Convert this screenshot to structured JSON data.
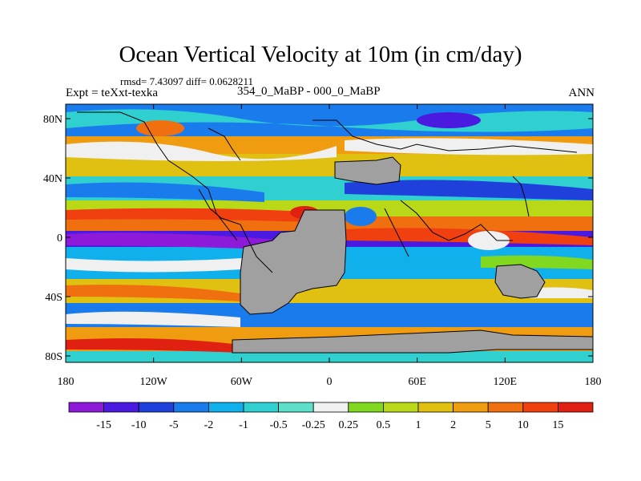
{
  "title": "Ocean Vertical Velocity at 10m (in cm/day)",
  "stats": "rmsd= 7.43097 diff= 0.0628211",
  "experiment": "Expt = teXxt-texka",
  "subtitle": "354_0_MaBP - 000_0_MaBP",
  "season": "ANN",
  "y_ticks": [
    "80N",
    "40N",
    "0",
    "40S",
    "80S"
  ],
  "x_ticks": [
    "180",
    "120W",
    "60W",
    "0",
    "60E",
    "120E",
    "180"
  ],
  "colorbar": {
    "labels": [
      "-15",
      "-10",
      "-5",
      "-2",
      "-1",
      "-0.5",
      "-0.25",
      "0.25",
      "0.5",
      "1",
      "2",
      "5",
      "10",
      "15"
    ],
    "colors": [
      "#8c1ad8",
      "#4a1ae0",
      "#2040dc",
      "#1a7cec",
      "#10b0ec",
      "#30d0d0",
      "#5ee0c8",
      "#f0f0f0",
      "#80d820",
      "#b8d818",
      "#e0c010",
      "#f09c10",
      "#f07010",
      "#f04010",
      "#e02010"
    ]
  },
  "colors": {
    "land": "#a0a0a0",
    "coast": "#000000"
  }
}
